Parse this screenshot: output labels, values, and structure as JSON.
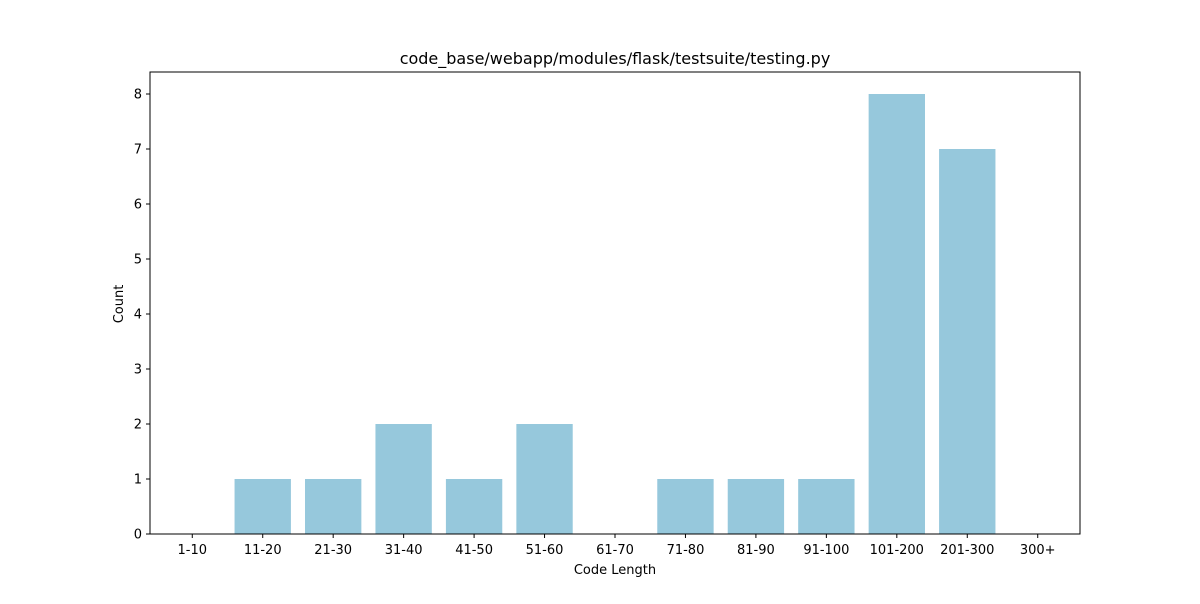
{
  "chart_data": {
    "type": "bar",
    "title": "code_base/webapp/modules/flask/testsuite/testing.py",
    "xlabel": "Code Length",
    "ylabel": "Count",
    "categories": [
      "1-10",
      "11-20",
      "21-30",
      "31-40",
      "41-50",
      "51-60",
      "61-70",
      "71-80",
      "81-90",
      "91-100",
      "101-200",
      "201-300",
      "300+"
    ],
    "values": [
      0,
      1,
      1,
      2,
      1,
      2,
      0,
      1,
      1,
      1,
      8,
      7,
      0
    ],
    "ylim": [
      0,
      8.4
    ],
    "yticks": [
      "0",
      "1",
      "2",
      "3",
      "4",
      "5",
      "6",
      "7",
      "8"
    ],
    "bar_color": "#96c8dc",
    "grid": false,
    "legend": "none"
  }
}
